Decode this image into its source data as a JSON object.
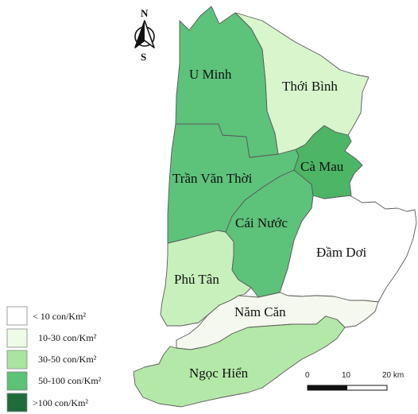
{
  "colors": {
    "lt10": "#ffffff",
    "c10_30": "#eefbe6",
    "c30_50": "#a8e6a0",
    "c50_100": "#5cc276",
    "gt100": "#1f6b3a",
    "u_minh": "#5dc27a",
    "thoi_binh": "#d8f5cc",
    "tran_van_thoi": "#5dc27a",
    "ca_mau": "#4cb566",
    "cai_nuoc": "#5dc27a",
    "dam_doi": "#ffffff",
    "phu_tan": "#c8f0bc",
    "nam_can": "#f5f8ee",
    "ngoc_hien": "#b4e8a8"
  },
  "districts": {
    "u_minh": "U Minh",
    "thoi_binh": "Thới Bình",
    "tran_van_thoi": "Trần Văn Thời",
    "ca_mau": "Cà Mau",
    "cai_nuoc": "Cái Nước",
    "dam_doi": "Đầm Dơi",
    "phu_tan": "Phú Tân",
    "nam_can": "Năm Căn",
    "ngoc_hien": "Ngọc Hiển"
  },
  "compass": {
    "north": "N",
    "south": "S"
  },
  "legend": {
    "items": [
      {
        "label": "< 10 con/Km²"
      },
      {
        "label": "10-30 con/Km²"
      },
      {
        "label": "30-50 con/Km²"
      },
      {
        "label": "50-100 con/Km²"
      },
      {
        "label": ">100 con/Km²"
      }
    ]
  },
  "scale_bar": {
    "t0": "0",
    "t1": "10",
    "t2": "20 km"
  }
}
